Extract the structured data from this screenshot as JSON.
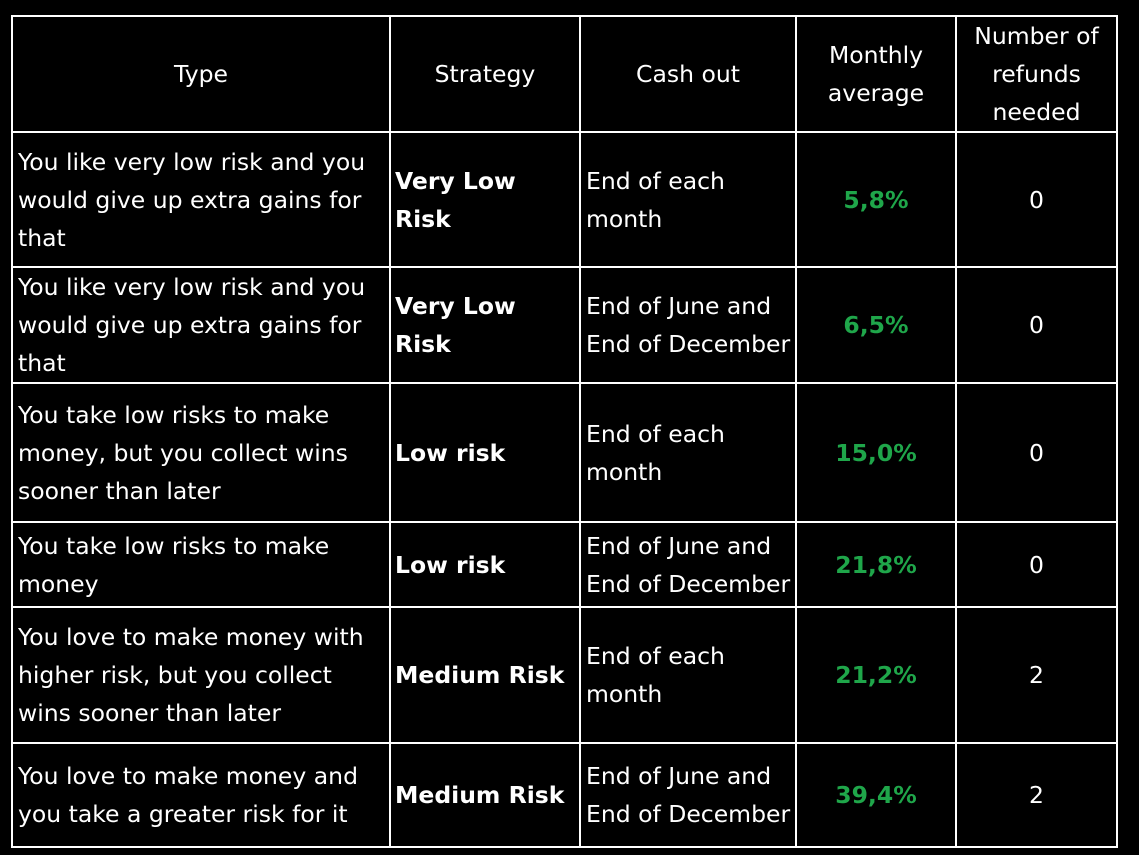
{
  "colors": {
    "background": "#000000",
    "text": "#ffffff",
    "grid": "#ffffff",
    "highlight": "#1fa64a"
  },
  "headers": {
    "type": "Type",
    "strategy": "Strategy",
    "cash_out": "Cash out",
    "monthly_average": "Monthly average",
    "refunds": "Number of refunds needed"
  },
  "rows": [
    {
      "type": "You like very low risk and you would give up extra gains for that",
      "strategy": "Very Low Risk",
      "cash_out": "End of each month",
      "monthly_average": "5,8%",
      "refunds": "0"
    },
    {
      "type": "You like very low risk and you would give up extra gains for that",
      "strategy": "Very Low Risk",
      "cash_out": "End of June and End of December",
      "monthly_average": "6,5%",
      "refunds": "0"
    },
    {
      "type": "You take low risks to make money, but you collect wins sooner than later",
      "strategy": "Low risk",
      "cash_out": "End of each month",
      "monthly_average": "15,0%",
      "refunds": "0"
    },
    {
      "type": "You take low risks to make money",
      "strategy": "Low risk",
      "cash_out": "End of June and End of December",
      "monthly_average": "21,8%",
      "refunds": "0"
    },
    {
      "type": "You love to make money with higher risk, but you collect wins sooner than later",
      "strategy": "Medium Risk",
      "cash_out": "End of each month",
      "monthly_average": "21,2%",
      "refunds": "2"
    },
    {
      "type": "You love to make money and you take a greater risk for it",
      "strategy": "Medium Risk",
      "cash_out": "End of June and End of December",
      "monthly_average": "39,4%",
      "refunds": "2"
    }
  ]
}
